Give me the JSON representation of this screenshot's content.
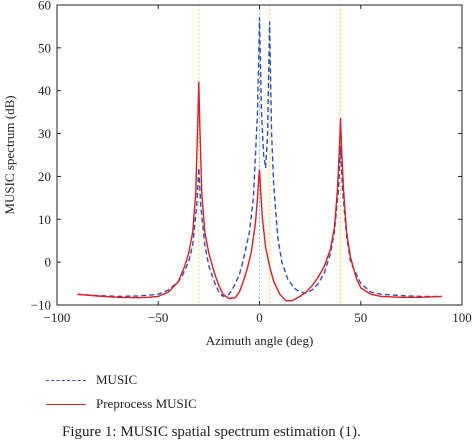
{
  "chart_data": {
    "type": "line",
    "xlabel": "Azimuth angle (deg)",
    "ylabel": "MUSIC spectrum (dB)",
    "xlim": [
      -100,
      100
    ],
    "ylim": [
      -10,
      60
    ],
    "xticks": [
      -100,
      -50,
      0,
      50,
      100
    ],
    "yticks": [
      -10,
      0,
      10,
      20,
      30,
      40,
      50,
      60
    ],
    "grid": false,
    "legend_position": "below",
    "reference_lines_x": [
      -30,
      0,
      5,
      40
    ],
    "series": [
      {
        "name": "MUSIC",
        "style": "dashed",
        "color": "#2f4fb8",
        "x": [
          -90,
          -80,
          -70,
          -60,
          -50,
          -45,
          -40,
          -38,
          -35,
          -33,
          -31,
          -30,
          -29,
          -27,
          -25,
          -22,
          -20,
          -18,
          -15,
          -13,
          -10,
          -8,
          -5,
          -3,
          -1,
          0,
          1,
          2,
          3,
          4,
          5,
          6,
          7,
          9,
          11,
          14,
          17,
          20,
          23,
          26,
          29,
          32,
          35,
          37,
          39,
          40,
          41,
          43,
          45,
          50,
          55,
          60,
          70,
          80,
          90
        ],
        "values": [
          -7.5,
          -7.8,
          -8.0,
          -7.9,
          -7.5,
          -6.5,
          -4.5,
          -3.0,
          0.0,
          4.0,
          13.0,
          22.0,
          13.0,
          4.0,
          -1.0,
          -5.0,
          -7.0,
          -8.0,
          -7.5,
          -6.0,
          -3.0,
          0.5,
          7.0,
          15.0,
          35.0,
          57.0,
          35.0,
          25.0,
          22.0,
          30.0,
          56.0,
          30.0,
          18.0,
          6.0,
          0.0,
          -4.0,
          -6.0,
          -7.0,
          -7.2,
          -6.5,
          -5.0,
          -2.5,
          2.0,
          7.0,
          17.0,
          27.0,
          17.0,
          6.0,
          0.0,
          -5.0,
          -7.0,
          -7.5,
          -7.8,
          -8.0,
          -8.0
        ]
      },
      {
        "name": "Preprocess MUSIC",
        "style": "solid",
        "color": "#e11b22",
        "x": [
          -90,
          -80,
          -70,
          -60,
          -55,
          -50,
          -45,
          -40,
          -37,
          -35,
          -33,
          -31.5,
          -30.5,
          -30,
          -29.5,
          -28.5,
          -27,
          -25,
          -22,
          -20,
          -18,
          -15,
          -12,
          -10,
          -8,
          -6,
          -4,
          -2,
          -1,
          -0.3,
          0,
          0.5,
          1.5,
          3,
          5,
          7,
          10,
          13,
          16,
          20,
          23,
          26,
          29,
          32,
          35,
          37,
          38.5,
          39.5,
          40,
          40.5,
          41.5,
          43,
          45,
          48,
          50,
          55,
          60,
          70,
          80,
          90
        ],
        "values": [
          -7.5,
          -7.9,
          -8.2,
          -8.3,
          -8.2,
          -8.0,
          -7.0,
          -4.5,
          -1.0,
          2.0,
          7.0,
          16.0,
          32.0,
          42.0,
          32.0,
          16.0,
          7.0,
          2.0,
          -3.0,
          -5.5,
          -7.5,
          -8.5,
          -8.3,
          -7.0,
          -4.5,
          -1.5,
          2.5,
          9.0,
          15.0,
          20.0,
          21.5,
          17.0,
          10.0,
          3.5,
          -1.0,
          -4.5,
          -7.5,
          -9.0,
          -9.0,
          -8.0,
          -7.0,
          -5.5,
          -3.5,
          -1.0,
          3.0,
          8.0,
          17.0,
          27.0,
          33.5,
          27.0,
          17.0,
          7.0,
          1.0,
          -4.0,
          -6.0,
          -7.5,
          -8.0,
          -8.2,
          -8.2,
          -8.0
        ]
      }
    ]
  },
  "legend": {
    "music_label": "MUSIC",
    "preprocess_label": "Preprocess MUSIC"
  },
  "caption": {
    "text": "Figure 1: MUSIC spatial spectrum estimation (1)."
  }
}
